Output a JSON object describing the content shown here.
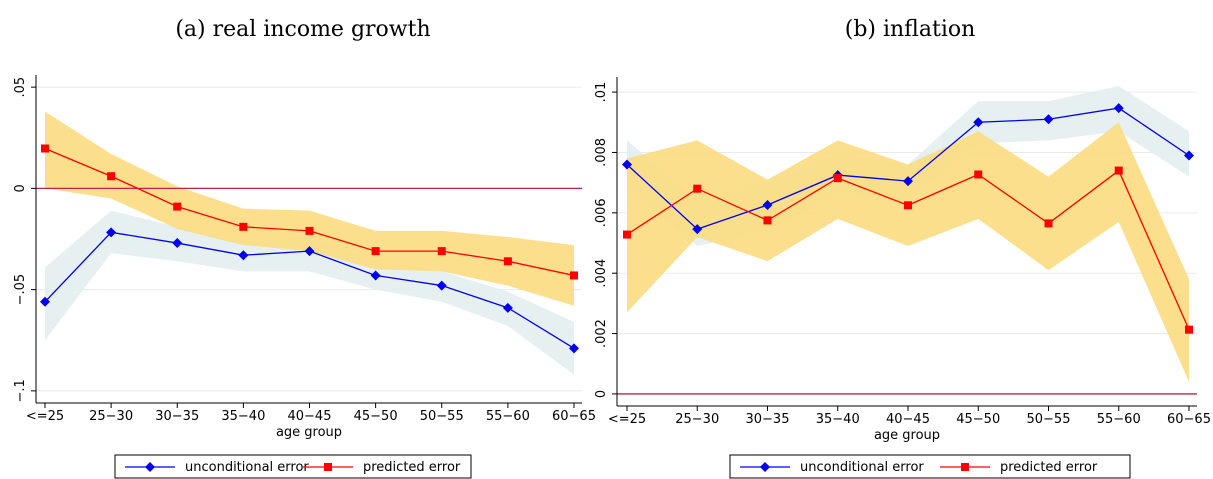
{
  "chart_data": [
    {
      "type": "line",
      "title": "(a) real income growth",
      "xlabel": "age group",
      "categories": [
        "<=25",
        "25−30",
        "30−35",
        "35−40",
        "40−45",
        "45−50",
        "50−55",
        "55−60",
        "60−65"
      ],
      "ylim": [
        -0.106,
        0.056
      ],
      "yticks": [
        {
          "value": -0.1,
          "label": "−.1"
        },
        {
          "value": -0.05,
          "label": "−.05"
        },
        0,
        {
          "value": 0.05,
          "label": ".05"
        }
      ],
      "hline": 0,
      "hline_color": "#c0234a",
      "grid": true,
      "series": [
        {
          "name": "unconditional error",
          "color": "#0000ee",
          "marker": "diamond",
          "band_color": "#e3eef0",
          "values": [
            -0.056,
            -0.0217,
            -0.027,
            -0.033,
            -0.031,
            -0.043,
            -0.048,
            -0.059,
            -0.079
          ],
          "upper": [
            -0.039,
            -0.011,
            -0.019,
            -0.026,
            -0.024,
            -0.036,
            -0.041,
            -0.051,
            -0.066
          ],
          "lower": [
            -0.075,
            -0.032,
            -0.036,
            -0.041,
            -0.041,
            -0.05,
            -0.056,
            -0.068,
            -0.092
          ]
        },
        {
          "name": "predicted error",
          "color": "#ff0000",
          "marker": "square",
          "band_color": "#fbdc80",
          "values": [
            0.0197,
            0.006,
            -0.009,
            -0.019,
            -0.021,
            -0.031,
            -0.031,
            -0.036,
            -0.043
          ],
          "upper": [
            0.038,
            0.017,
            0.001,
            -0.01,
            -0.011,
            -0.021,
            -0.021,
            -0.024,
            -0.028
          ],
          "lower": [
            0.0,
            -0.005,
            -0.02,
            -0.028,
            -0.031,
            -0.04,
            -0.041,
            -0.048,
            -0.058
          ]
        }
      ]
    },
    {
      "type": "line",
      "title": "(b) inflation",
      "xlabel": "age group",
      "categories": [
        "<=25",
        "25−30",
        "30−35",
        "35−40",
        "40−45",
        "45−50",
        "50−55",
        "55−60",
        "60−65"
      ],
      "ylim": [
        -0.0004,
        0.0105
      ],
      "yticks": [
        0,
        {
          "value": 0.002,
          "label": ".002"
        },
        {
          "value": 0.004,
          "label": ".004"
        },
        {
          "value": 0.006,
          "label": ".006"
        },
        {
          "value": 0.008,
          "label": ".008"
        },
        {
          "value": 0.01,
          "label": ".01"
        }
      ],
      "hline": 0,
      "hline_color": "#c0234a",
      "grid": true,
      "series": [
        {
          "name": "unconditional error",
          "color": "#0000ee",
          "marker": "diamond",
          "band_color": "#e3eef0",
          "values": [
            0.0076,
            0.00546,
            0.00626,
            0.00725,
            0.00705,
            0.009,
            0.0091,
            0.00947,
            0.0079
          ],
          "upper": [
            0.0084,
            0.0064,
            0.0071,
            0.0079,
            0.0076,
            0.0097,
            0.0097,
            0.0102,
            0.0087
          ],
          "lower": [
            0.0068,
            0.0049,
            0.0054,
            0.0066,
            0.0064,
            0.0083,
            0.0084,
            0.0087,
            0.0072
          ]
        },
        {
          "name": "predicted error",
          "color": "#ff0000",
          "marker": "square",
          "band_color": "#fbdc80",
          "values": [
            0.00528,
            0.0068,
            0.00575,
            0.00715,
            0.00625,
            0.00727,
            0.00565,
            0.0074,
            0.00213
          ],
          "upper": [
            0.0078,
            0.0084,
            0.0071,
            0.0084,
            0.0076,
            0.0087,
            0.0072,
            0.009,
            0.0038
          ],
          "lower": [
            0.0027,
            0.0052,
            0.0044,
            0.0058,
            0.0049,
            0.0058,
            0.0041,
            0.0057,
            0.0004
          ]
        }
      ]
    }
  ]
}
